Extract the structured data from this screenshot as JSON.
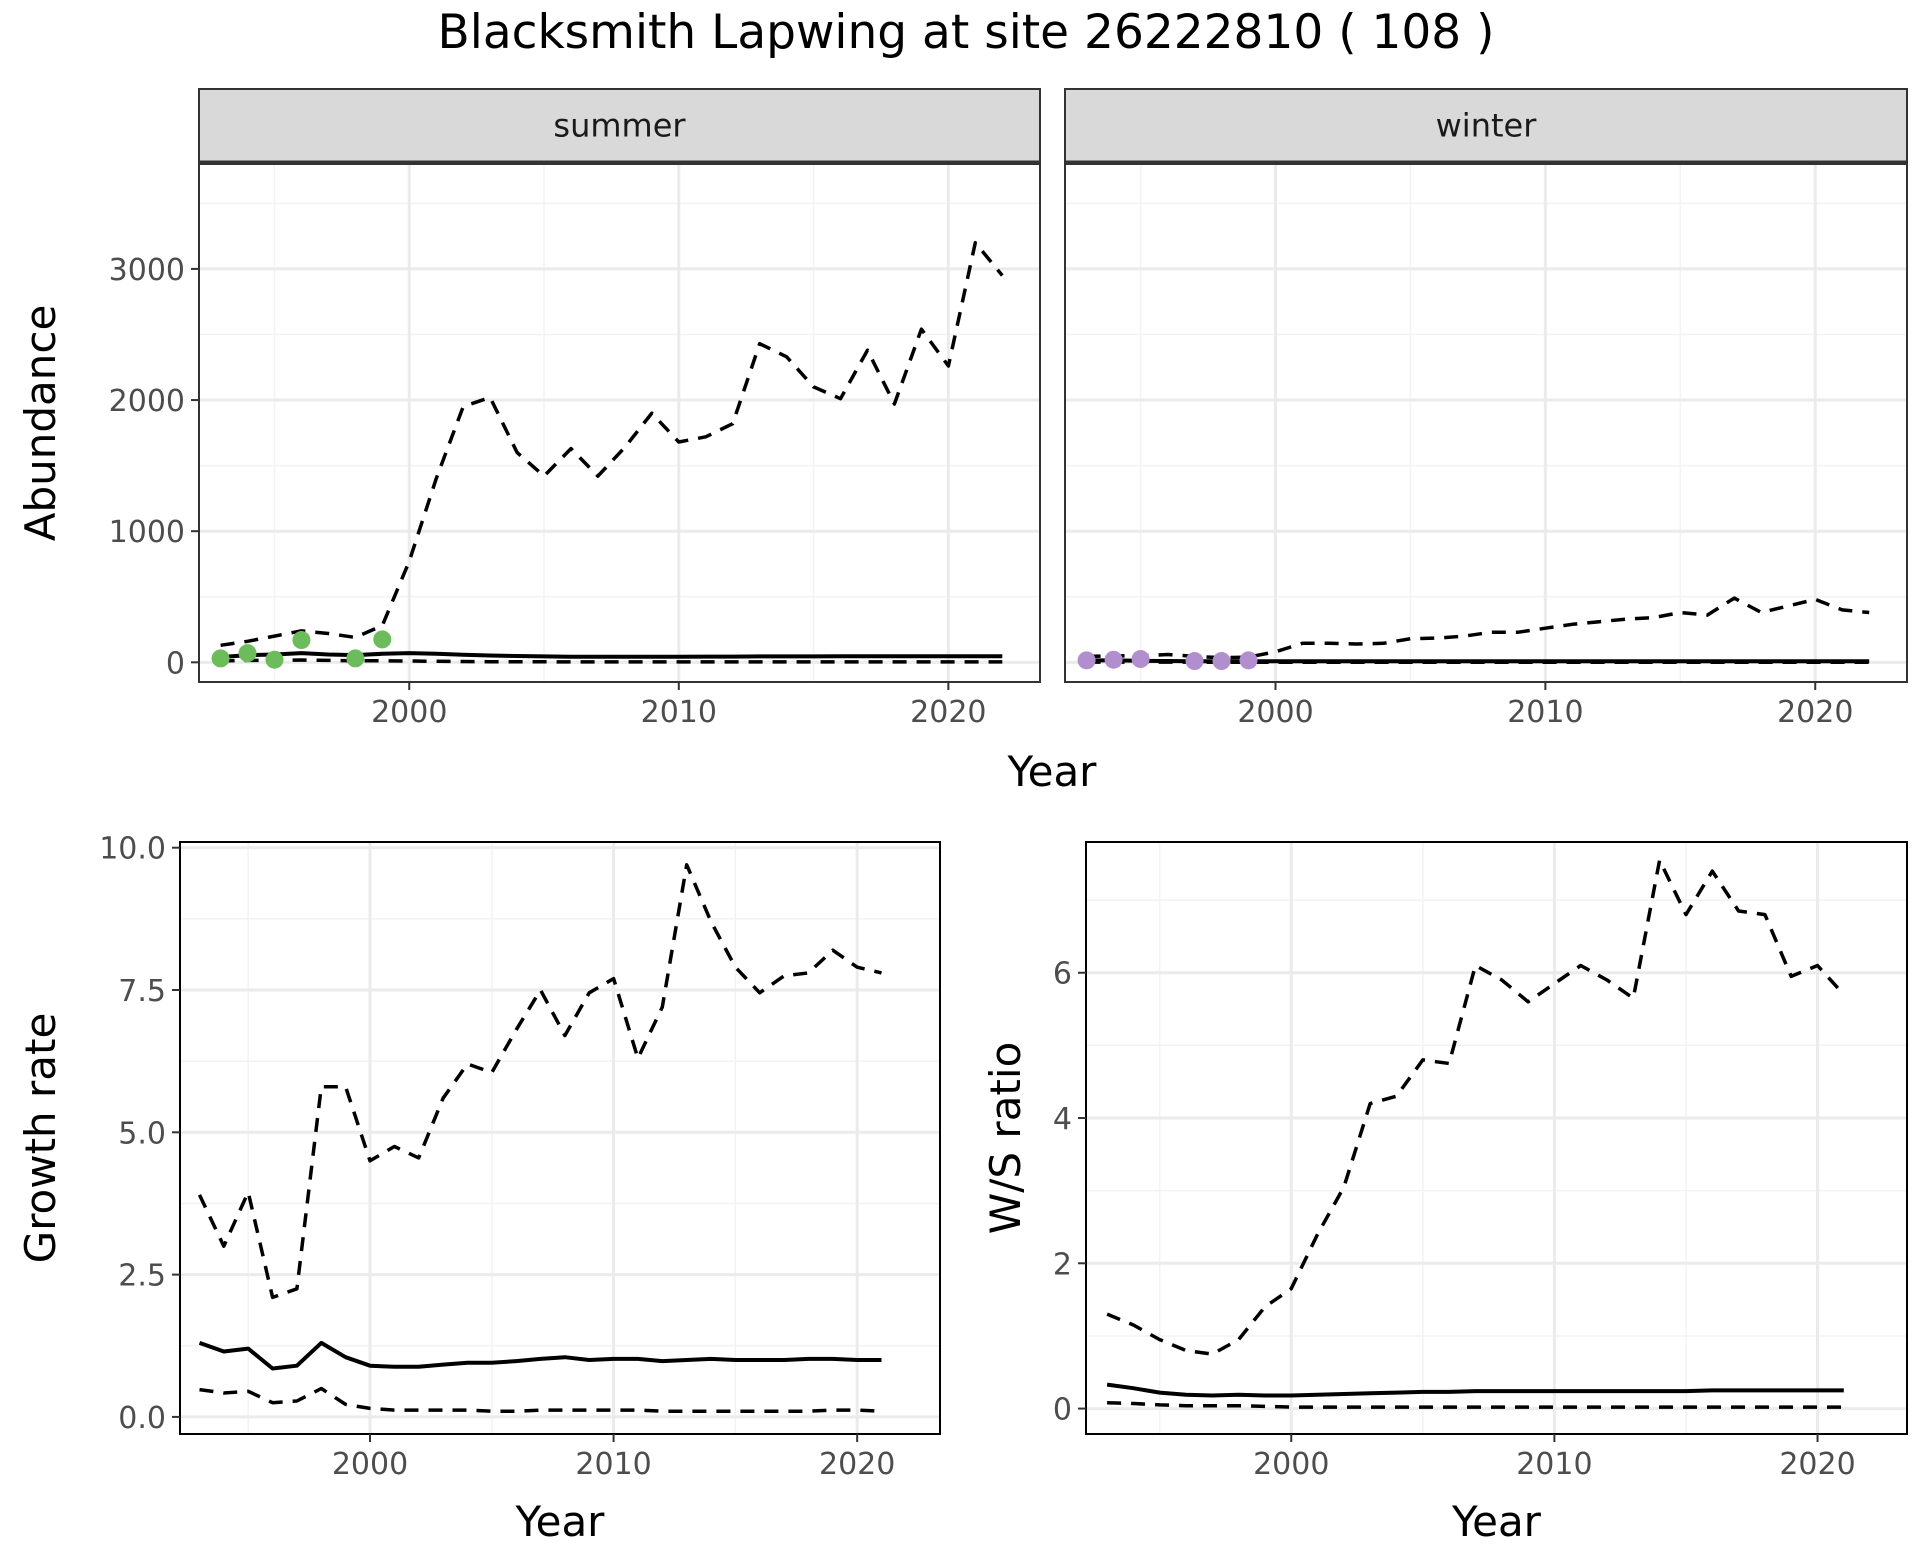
{
  "figure_title": "Blacksmith Lapwing at site 26222810 ( 108 )",
  "colors": {
    "summer_points": "#6cbc5c",
    "winter_points": "#b18fcf",
    "lines": "#000000",
    "strip_fill": "#d9d9d9"
  },
  "chart_data": [
    {
      "type": "line",
      "facet": "summer",
      "xlabel": "Year",
      "ylabel": "Abundance",
      "xlim": [
        1992.2,
        2023.4
      ],
      "ylim": [
        -150,
        3800
      ],
      "x_ticks": [
        2000,
        2010,
        2020
      ],
      "y_ticks": [
        0,
        1000,
        2000,
        3000
      ],
      "grid": true,
      "series": [
        {
          "role": "mean",
          "style": "solid",
          "x": [
            1993,
            1994,
            1995,
            1996,
            1997,
            1998,
            1999,
            2000,
            2001,
            2002,
            2003,
            2004,
            2005,
            2006,
            2007,
            2008,
            2009,
            2010,
            2011,
            2012,
            2013,
            2014,
            2015,
            2016,
            2017,
            2018,
            2019,
            2020,
            2021,
            2022
          ],
          "y": [
            40,
            55,
            60,
            70,
            60,
            55,
            65,
            70,
            65,
            58,
            52,
            48,
            45,
            43,
            42,
            42,
            43,
            43,
            44,
            44,
            45,
            45,
            45,
            46,
            46,
            46,
            46,
            47,
            47,
            47
          ]
        },
        {
          "role": "lower",
          "style": "dashed",
          "x": [
            1993,
            1994,
            1995,
            1996,
            1997,
            1998,
            1999,
            2000,
            2001,
            2002,
            2003,
            2004,
            2005,
            2006,
            2007,
            2008,
            2009,
            2010,
            2011,
            2012,
            2013,
            2014,
            2015,
            2016,
            2017,
            2018,
            2019,
            2020,
            2021,
            2022
          ],
          "y": [
            10,
            15,
            15,
            18,
            15,
            12,
            12,
            10,
            8,
            6,
            5,
            4,
            4,
            3,
            3,
            3,
            3,
            3,
            3,
            3,
            3,
            3,
            3,
            3,
            3,
            3,
            3,
            3,
            3,
            3
          ]
        },
        {
          "role": "upper",
          "style": "dashed",
          "x": [
            1993,
            1994,
            1995,
            1996,
            1997,
            1998,
            1999,
            2000,
            2001,
            2002,
            2003,
            2004,
            2005,
            2006,
            2007,
            2008,
            2009,
            2010,
            2011,
            2012,
            2013,
            2014,
            2015,
            2016,
            2017,
            2018,
            2019,
            2020,
            2021,
            2022
          ],
          "y": [
            130,
            160,
            200,
            240,
            220,
            190,
            280,
            770,
            1400,
            1950,
            2020,
            1600,
            1420,
            1630,
            1420,
            1640,
            1900,
            1680,
            1720,
            1820,
            2430,
            2330,
            2100,
            2010,
            2380,
            1970,
            2540,
            2260,
            3200,
            2950
          ]
        }
      ],
      "points": {
        "x": [
          1993,
          1994,
          1995,
          1996,
          1998,
          1999
        ],
        "y": [
          30,
          70,
          20,
          170,
          30,
          175
        ]
      }
    },
    {
      "type": "line",
      "facet": "winter",
      "xlabel": "Year",
      "ylabel": "Abundance",
      "xlim": [
        1992.2,
        2023.4
      ],
      "ylim": [
        -150,
        3800
      ],
      "x_ticks": [
        2000,
        2010,
        2020
      ],
      "y_ticks": [
        0,
        1000,
        2000,
        3000
      ],
      "grid": true,
      "series": [
        {
          "role": "mean",
          "style": "solid",
          "x": [
            1993,
            1994,
            1995,
            1996,
            1997,
            1998,
            1999,
            2000,
            2001,
            2002,
            2003,
            2004,
            2005,
            2006,
            2007,
            2008,
            2009,
            2010,
            2011,
            2012,
            2013,
            2014,
            2015,
            2016,
            2017,
            2018,
            2019,
            2020,
            2021,
            2022
          ],
          "y": [
            15,
            15,
            12,
            10,
            8,
            8,
            8,
            8,
            8,
            8,
            8,
            8,
            8,
            8,
            8,
            8,
            8,
            8,
            8,
            8,
            8,
            8,
            8,
            8,
            8,
            8,
            8,
            8,
            8,
            8
          ]
        },
        {
          "role": "lower",
          "style": "dashed",
          "x": [
            1993,
            1994,
            1995,
            1996,
            1997,
            1998,
            1999,
            2000,
            2001,
            2002,
            2003,
            2004,
            2005,
            2006,
            2007,
            2008,
            2009,
            2010,
            2011,
            2012,
            2013,
            2014,
            2015,
            2016,
            2017,
            2018,
            2019,
            2020,
            2021,
            2022
          ],
          "y": [
            2,
            2,
            2,
            2,
            1,
            1,
            1,
            1,
            1,
            1,
            1,
            1,
            1,
            1,
            1,
            1,
            1,
            1,
            1,
            1,
            1,
            1,
            1,
            1,
            1,
            1,
            1,
            1,
            1,
            1
          ]
        },
        {
          "role": "upper",
          "style": "dashed",
          "x": [
            1993,
            1994,
            1995,
            1996,
            1997,
            1998,
            1999,
            2000,
            2001,
            2002,
            2003,
            2004,
            2005,
            2006,
            2007,
            2008,
            2009,
            2010,
            2011,
            2012,
            2013,
            2014,
            2015,
            2016,
            2017,
            2018,
            2019,
            2020,
            2021,
            2022
          ],
          "y": [
            45,
            50,
            48,
            60,
            45,
            35,
            40,
            80,
            145,
            145,
            140,
            145,
            180,
            185,
            200,
            230,
            230,
            260,
            290,
            310,
            330,
            340,
            380,
            360,
            490,
            380,
            430,
            480,
            400,
            380
          ]
        }
      ],
      "points": {
        "x": [
          1993,
          1994,
          1995,
          1997,
          1998,
          1999
        ],
        "y": [
          15,
          20,
          25,
          10,
          10,
          15
        ]
      }
    },
    {
      "type": "line",
      "xlabel": "Year",
      "ylabel": "Growth rate",
      "xlim": [
        1992.2,
        2023.4
      ],
      "ylim": [
        -0.3,
        10.1
      ],
      "x_ticks": [
        2000,
        2010,
        2020
      ],
      "y_ticks": [
        0.0,
        2.5,
        5.0,
        7.5,
        10.0
      ],
      "y_tick_labels": [
        "0.0",
        "2.5",
        "5.0",
        "7.5",
        "10.0"
      ],
      "grid": true,
      "series": [
        {
          "role": "mean",
          "style": "solid",
          "x": [
            1993,
            1994,
            1995,
            1996,
            1997,
            1998,
            1999,
            2000,
            2001,
            2002,
            2003,
            2004,
            2005,
            2006,
            2007,
            2008,
            2009,
            2010,
            2011,
            2012,
            2013,
            2014,
            2015,
            2016,
            2017,
            2018,
            2019,
            2020,
            2021
          ],
          "y": [
            1.3,
            1.15,
            1.2,
            0.85,
            0.9,
            1.3,
            1.05,
            0.9,
            0.88,
            0.88,
            0.92,
            0.95,
            0.95,
            0.98,
            1.02,
            1.05,
            1.0,
            1.02,
            1.02,
            0.98,
            1.0,
            1.02,
            1.0,
            1.0,
            1.0,
            1.02,
            1.02,
            1.0,
            1.0
          ]
        },
        {
          "role": "lower",
          "style": "dashed",
          "x": [
            1993,
            1994,
            1995,
            1996,
            1997,
            1998,
            1999,
            2000,
            2001,
            2002,
            2003,
            2004,
            2005,
            2006,
            2007,
            2008,
            2009,
            2010,
            2011,
            2012,
            2013,
            2014,
            2015,
            2016,
            2017,
            2018,
            2019,
            2020,
            2021
          ],
          "y": [
            0.48,
            0.42,
            0.45,
            0.25,
            0.28,
            0.5,
            0.22,
            0.15,
            0.12,
            0.12,
            0.12,
            0.12,
            0.1,
            0.1,
            0.12,
            0.12,
            0.12,
            0.12,
            0.12,
            0.1,
            0.1,
            0.1,
            0.1,
            0.1,
            0.1,
            0.1,
            0.12,
            0.12,
            0.1
          ]
        },
        {
          "role": "upper",
          "style": "dashed",
          "x": [
            1993,
            1994,
            1995,
            1996,
            1997,
            1998,
            1999,
            2000,
            2001,
            2002,
            2003,
            2004,
            2005,
            2006,
            2007,
            2008,
            2009,
            2010,
            2011,
            2012,
            2013,
            2014,
            2015,
            2016,
            2017,
            2018,
            2019,
            2020,
            2021
          ],
          "y": [
            3.9,
            3.0,
            3.95,
            2.1,
            2.25,
            5.8,
            5.8,
            4.5,
            4.75,
            4.55,
            5.6,
            6.2,
            6.05,
            6.8,
            7.5,
            6.7,
            7.45,
            7.7,
            6.3,
            7.2,
            9.7,
            8.7,
            7.9,
            7.45,
            7.75,
            7.8,
            8.2,
            7.9,
            7.8
          ]
        }
      ]
    },
    {
      "type": "line",
      "xlabel": "Year",
      "ylabel": "W/S ratio",
      "xlim": [
        1992.2,
        2023.4
      ],
      "ylim": [
        -0.35,
        7.8
      ],
      "x_ticks": [
        2000,
        2010,
        2020
      ],
      "y_ticks": [
        0,
        2,
        4,
        6
      ],
      "grid": true,
      "series": [
        {
          "role": "mean",
          "style": "solid",
          "x": [
            1993,
            1994,
            1995,
            1996,
            1997,
            1998,
            1999,
            2000,
            2001,
            2002,
            2003,
            2004,
            2005,
            2006,
            2007,
            2008,
            2009,
            2010,
            2011,
            2012,
            2013,
            2014,
            2015,
            2016,
            2017,
            2018,
            2019,
            2020,
            2021
          ],
          "y": [
            0.33,
            0.28,
            0.22,
            0.19,
            0.18,
            0.19,
            0.18,
            0.18,
            0.19,
            0.2,
            0.21,
            0.22,
            0.23,
            0.23,
            0.24,
            0.24,
            0.24,
            0.24,
            0.24,
            0.24,
            0.24,
            0.24,
            0.24,
            0.25,
            0.25,
            0.25,
            0.25,
            0.25,
            0.25
          ]
        },
        {
          "role": "lower",
          "style": "dashed",
          "x": [
            1993,
            1994,
            1995,
            1996,
            1997,
            1998,
            1999,
            2000,
            2001,
            2002,
            2003,
            2004,
            2005,
            2006,
            2007,
            2008,
            2009,
            2010,
            2011,
            2012,
            2013,
            2014,
            2015,
            2016,
            2017,
            2018,
            2019,
            2020,
            2021
          ],
          "y": [
            0.08,
            0.07,
            0.05,
            0.04,
            0.04,
            0.04,
            0.03,
            0.02,
            0.02,
            0.02,
            0.02,
            0.02,
            0.02,
            0.02,
            0.02,
            0.02,
            0.02,
            0.02,
            0.02,
            0.02,
            0.02,
            0.02,
            0.02,
            0.02,
            0.02,
            0.02,
            0.02,
            0.02,
            0.02
          ]
        },
        {
          "role": "upper",
          "style": "dashed",
          "x": [
            1993,
            1994,
            1995,
            1996,
            1997,
            1998,
            1999,
            2000,
            2001,
            2002,
            2003,
            2004,
            2005,
            2006,
            2007,
            2008,
            2009,
            2010,
            2011,
            2012,
            2013,
            2014,
            2015,
            2016,
            2017,
            2018,
            2019,
            2020,
            2021
          ],
          "y": [
            1.3,
            1.15,
            0.95,
            0.8,
            0.75,
            0.95,
            1.4,
            1.65,
            2.4,
            3.05,
            4.2,
            4.3,
            4.8,
            4.75,
            6.1,
            5.9,
            5.6,
            5.85,
            6.1,
            5.9,
            5.65,
            7.55,
            6.8,
            7.4,
            6.85,
            6.8,
            5.95,
            6.1,
            5.7
          ]
        }
      ]
    }
  ]
}
